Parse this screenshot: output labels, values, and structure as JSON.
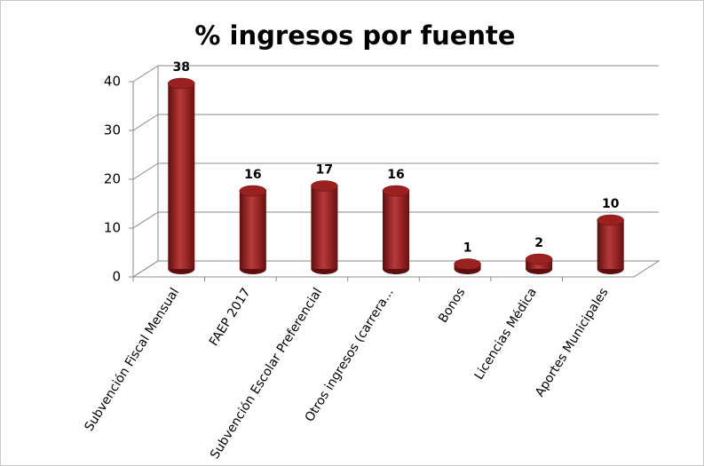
{
  "chart_data": {
    "type": "bar3d",
    "title": "% ingresos por fuente",
    "categories": [
      "Subvención Fiscal Mensual",
      "FAEP 2017",
      "Subvención Escolar Preferencial",
      "Otros ingresos (carrera...",
      "Bonos",
      "Licencias Médica",
      "Aportes Municipales"
    ],
    "values": [
      38,
      16,
      17,
      16,
      1,
      2,
      10
    ],
    "color": "#9b2020",
    "ylim": [
      0,
      40
    ],
    "yticks": [
      0,
      10,
      20,
      30,
      40
    ],
    "grid": true
  }
}
